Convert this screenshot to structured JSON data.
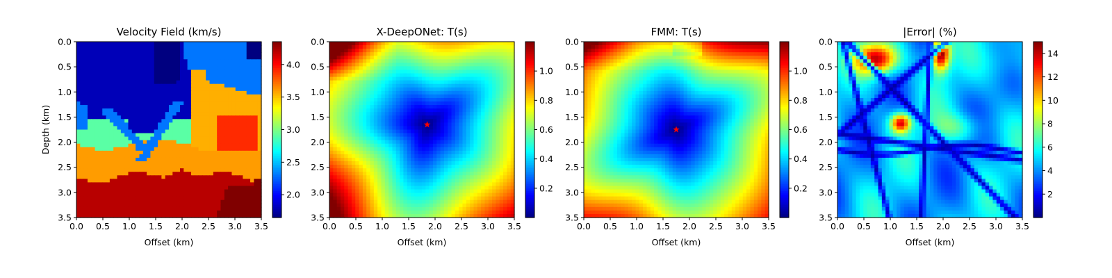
{
  "colors": {
    "star": "#ff0000",
    "colormap": "jet"
  },
  "chart_data": [
    {
      "type": "heatmap",
      "title": "Velocity Field (km/s)",
      "xlabel": "Offset (km)",
      "ylabel": "Depth (km)",
      "xlim": [
        0,
        3.5
      ],
      "ylim": [
        3.5,
        0
      ],
      "xticks": [
        "0.0",
        "0.5",
        "1.0",
        "1.5",
        "2.0",
        "2.5",
        "3.0",
        "3.5"
      ],
      "yticks": [
        "0.0",
        "0.5",
        "1.0",
        "1.5",
        "2.0",
        "2.5",
        "3.0",
        "3.5"
      ],
      "colorbar": {
        "min": 1.65,
        "max": 4.35,
        "ticks": [
          "2.0",
          "2.5",
          "3.0",
          "3.5",
          "4.0"
        ]
      },
      "field": "layered velocity model: ~1.8 near-surface/left wedge, ~2.3 channels, ~2.9 dipping bands, ~3.6 mid layers, ~4.2 deep, ~4.35 bottom-right block"
    },
    {
      "type": "heatmap",
      "title": "X-DeepONet: T(s)",
      "xlabel": "Offset (km)",
      "xlim": [
        0,
        3.5
      ],
      "ylim": [
        3.5,
        0
      ],
      "xticks": [
        "0.0",
        "0.5",
        "1.0",
        "1.5",
        "2.0",
        "2.5",
        "3.0",
        "3.5"
      ],
      "yticks": [
        "0.0",
        "0.5",
        "1.0",
        "1.5",
        "2.0",
        "2.5",
        "3.0",
        "3.5"
      ],
      "colorbar": {
        "min": 0.0,
        "max": 1.2,
        "ticks": [
          "0.2",
          "0.4",
          "0.6",
          "0.8",
          "1.0"
        ]
      },
      "source": {
        "x": 1.85,
        "y": 1.65
      },
      "field": "traveltime increasing radially from source; max ~1.2 s at top-left"
    },
    {
      "type": "heatmap",
      "title": "FMM: T(s)",
      "xlabel": "Offset (km)",
      "xlim": [
        0,
        3.5
      ],
      "ylim": [
        3.5,
        0
      ],
      "xticks": [
        "0.0",
        "0.5",
        "1.0",
        "1.5",
        "2.0",
        "2.5",
        "3.0",
        "3.5"
      ],
      "yticks": [
        "0.0",
        "0.5",
        "1.0",
        "1.5",
        "2.0",
        "2.5",
        "3.0",
        "3.5"
      ],
      "colorbar": {
        "min": 0.0,
        "max": 1.2,
        "ticks": [
          "0.2",
          "0.4",
          "0.6",
          "0.8",
          "1.0"
        ]
      },
      "source": {
        "x": 1.75,
        "y": 1.75
      },
      "field": "reference fast-marching traveltime; max ~1.2 s at top-left"
    },
    {
      "type": "heatmap",
      "title": "|Error| (%)",
      "xlabel": "Offset (km)",
      "xlim": [
        0,
        3.5
      ],
      "ylim": [
        3.5,
        0
      ],
      "xticks": [
        "0.0",
        "0.5",
        "1.0",
        "1.5",
        "2.0",
        "2.5",
        "3.0",
        "3.5"
      ],
      "yticks": [
        "0.0",
        "0.5",
        "1.0",
        "1.5",
        "2.0",
        "2.5",
        "3.0",
        "3.5"
      ],
      "colorbar": {
        "min": 0.0,
        "max": 15.0,
        "ticks": [
          "2",
          "4",
          "6",
          "8",
          "10",
          "12",
          "14"
        ]
      },
      "hotspots": [
        {
          "x": 0.75,
          "y": 0.3,
          "value": 14
        },
        {
          "x": 1.95,
          "y": 0.25,
          "value": 15
        },
        {
          "x": 1.2,
          "y": 1.6,
          "value": 13
        }
      ],
      "field": "absolute percentage error; mostly 2-6 %, dark low-error bands"
    }
  ]
}
